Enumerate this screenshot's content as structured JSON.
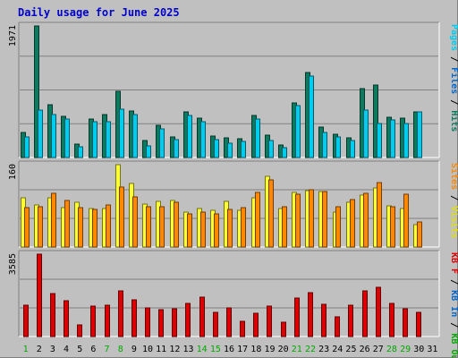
{
  "title": "Daily usage for June 2025",
  "colors": {
    "hits": "#0b7a5e",
    "files": "#00ccee",
    "pages": "#00ccee",
    "visits": "#ffff33",
    "sites": "#ff8800",
    "kbf": "#dd0000",
    "background": "#c0c0c0",
    "title": "#0000cc"
  },
  "chart_data": [
    {
      "type": "bar",
      "panel": "hits-files-pages",
      "ymax_label": "1971",
      "ylim": [
        0,
        1971
      ],
      "categories": [
        "1",
        "2",
        "3",
        "4",
        "5",
        "6",
        "7",
        "8",
        "9",
        "10",
        "11",
        "12",
        "13",
        "14",
        "15",
        "16",
        "17",
        "18",
        "19",
        "20",
        "21",
        "22",
        "23",
        "24",
        "25",
        "26",
        "27",
        "28",
        "29",
        "30",
        "31"
      ],
      "series": [
        {
          "name": "Hits",
          "values": [
            370,
            1971,
            790,
            620,
            200,
            580,
            640,
            990,
            700,
            260,
            480,
            310,
            680,
            590,
            320,
            290,
            280,
            630,
            330,
            190,
            820,
            1270,
            460,
            350,
            290,
            1030,
            1080,
            600,
            590,
            690,
            0
          ]
        },
        {
          "name": "Files",
          "values": [
            310,
            710,
            640,
            570,
            160,
            540,
            540,
            720,
            640,
            180,
            430,
            270,
            630,
            540,
            270,
            210,
            240,
            580,
            250,
            150,
            780,
            1220,
            380,
            310,
            260,
            710,
            510,
            560,
            510,
            680,
            0
          ]
        },
        {
          "name": "Pages",
          "values": [
            0,
            0,
            0,
            0,
            0,
            0,
            0,
            0,
            0,
            0,
            0,
            0,
            0,
            0,
            0,
            0,
            0,
            0,
            0,
            0,
            0,
            0,
            0,
            0,
            0,
            0,
            0,
            0,
            0,
            0,
            0
          ]
        }
      ]
    },
    {
      "type": "bar",
      "panel": "visits-sites",
      "ymax_label": "160",
      "ylim": [
        0,
        160
      ],
      "categories": [
        "1",
        "2",
        "3",
        "4",
        "5",
        "6",
        "7",
        "8",
        "9",
        "10",
        "11",
        "12",
        "13",
        "14",
        "15",
        "16",
        "17",
        "18",
        "19",
        "20",
        "21",
        "22",
        "23",
        "24",
        "25",
        "26",
        "27",
        "28",
        "29",
        "30",
        "31"
      ],
      "series": [
        {
          "name": "Visits",
          "values": [
            96,
            81,
            95,
            76,
            87,
            74,
            74,
            160,
            123,
            83,
            89,
            90,
            68,
            74,
            72,
            89,
            72,
            95,
            137,
            75,
            106,
            110,
            108,
            68,
            87,
            101,
            115,
            80,
            75,
            44,
            0
          ]
        },
        {
          "name": "Sites",
          "values": [
            77,
            79,
            105,
            91,
            77,
            73,
            81,
            117,
            98,
            79,
            79,
            87,
            65,
            68,
            65,
            73,
            77,
            106,
            130,
            78,
            102,
            112,
            108,
            78,
            92,
            104,
            126,
            79,
            103,
            48,
            0
          ]
        }
      ]
    },
    {
      "type": "bar",
      "panel": "kbf",
      "ymax_label": "3585",
      "ylim": [
        0,
        3585
      ],
      "categories": [
        "1",
        "2",
        "3",
        "4",
        "5",
        "6",
        "7",
        "8",
        "9",
        "10",
        "11",
        "12",
        "13",
        "14",
        "15",
        "16",
        "17",
        "18",
        "19",
        "20",
        "21",
        "22",
        "23",
        "24",
        "25",
        "26",
        "27",
        "28",
        "29",
        "30",
        "31"
      ],
      "series": [
        {
          "name": "KB F",
          "values": [
            1380,
            3585,
            1860,
            1560,
            520,
            1310,
            1360,
            1990,
            1600,
            1240,
            1150,
            1220,
            1460,
            1710,
            1070,
            1240,
            670,
            1020,
            1310,
            630,
            1660,
            1890,
            1420,
            850,
            1350,
            2000,
            2150,
            1450,
            1190,
            1070,
            0
          ]
        }
      ]
    }
  ],
  "right_labels": {
    "top": [
      {
        "text": "Pages",
        "color": "#00ccee"
      },
      {
        "text": " / ",
        "color": "#000000"
      },
      {
        "text": "Files",
        "color": "#0066cc"
      },
      {
        "text": " / ",
        "color": "#000000"
      },
      {
        "text": "Hits",
        "color": "#0b7a5e"
      }
    ],
    "middle": [
      {
        "text": "Sites",
        "color": "#ff8800"
      },
      {
        "text": " / ",
        "color": "#000000"
      },
      {
        "text": "Visits",
        "color": "#e0e000"
      }
    ],
    "bottom": [
      {
        "text": "KB F",
        "color": "#dd0000"
      },
      {
        "text": " / ",
        "color": "#000000"
      },
      {
        "text": "KB In",
        "color": "#0066cc"
      },
      {
        "text": " / ",
        "color": "#000000"
      },
      {
        "text": "KB Out",
        "color": "#00aa00"
      }
    ]
  },
  "x_labels": [
    "1",
    "2",
    "3",
    "4",
    "5",
    "6",
    "7",
    "8",
    "9",
    "10",
    "11",
    "12",
    "13",
    "14",
    "15",
    "16",
    "17",
    "18",
    "19",
    "20",
    "21",
    "22",
    "23",
    "24",
    "25",
    "26",
    "27",
    "28",
    "29",
    "30",
    "31"
  ],
  "x_label_green_days": [
    1,
    7,
    8,
    14,
    15,
    21,
    22,
    28,
    29
  ]
}
